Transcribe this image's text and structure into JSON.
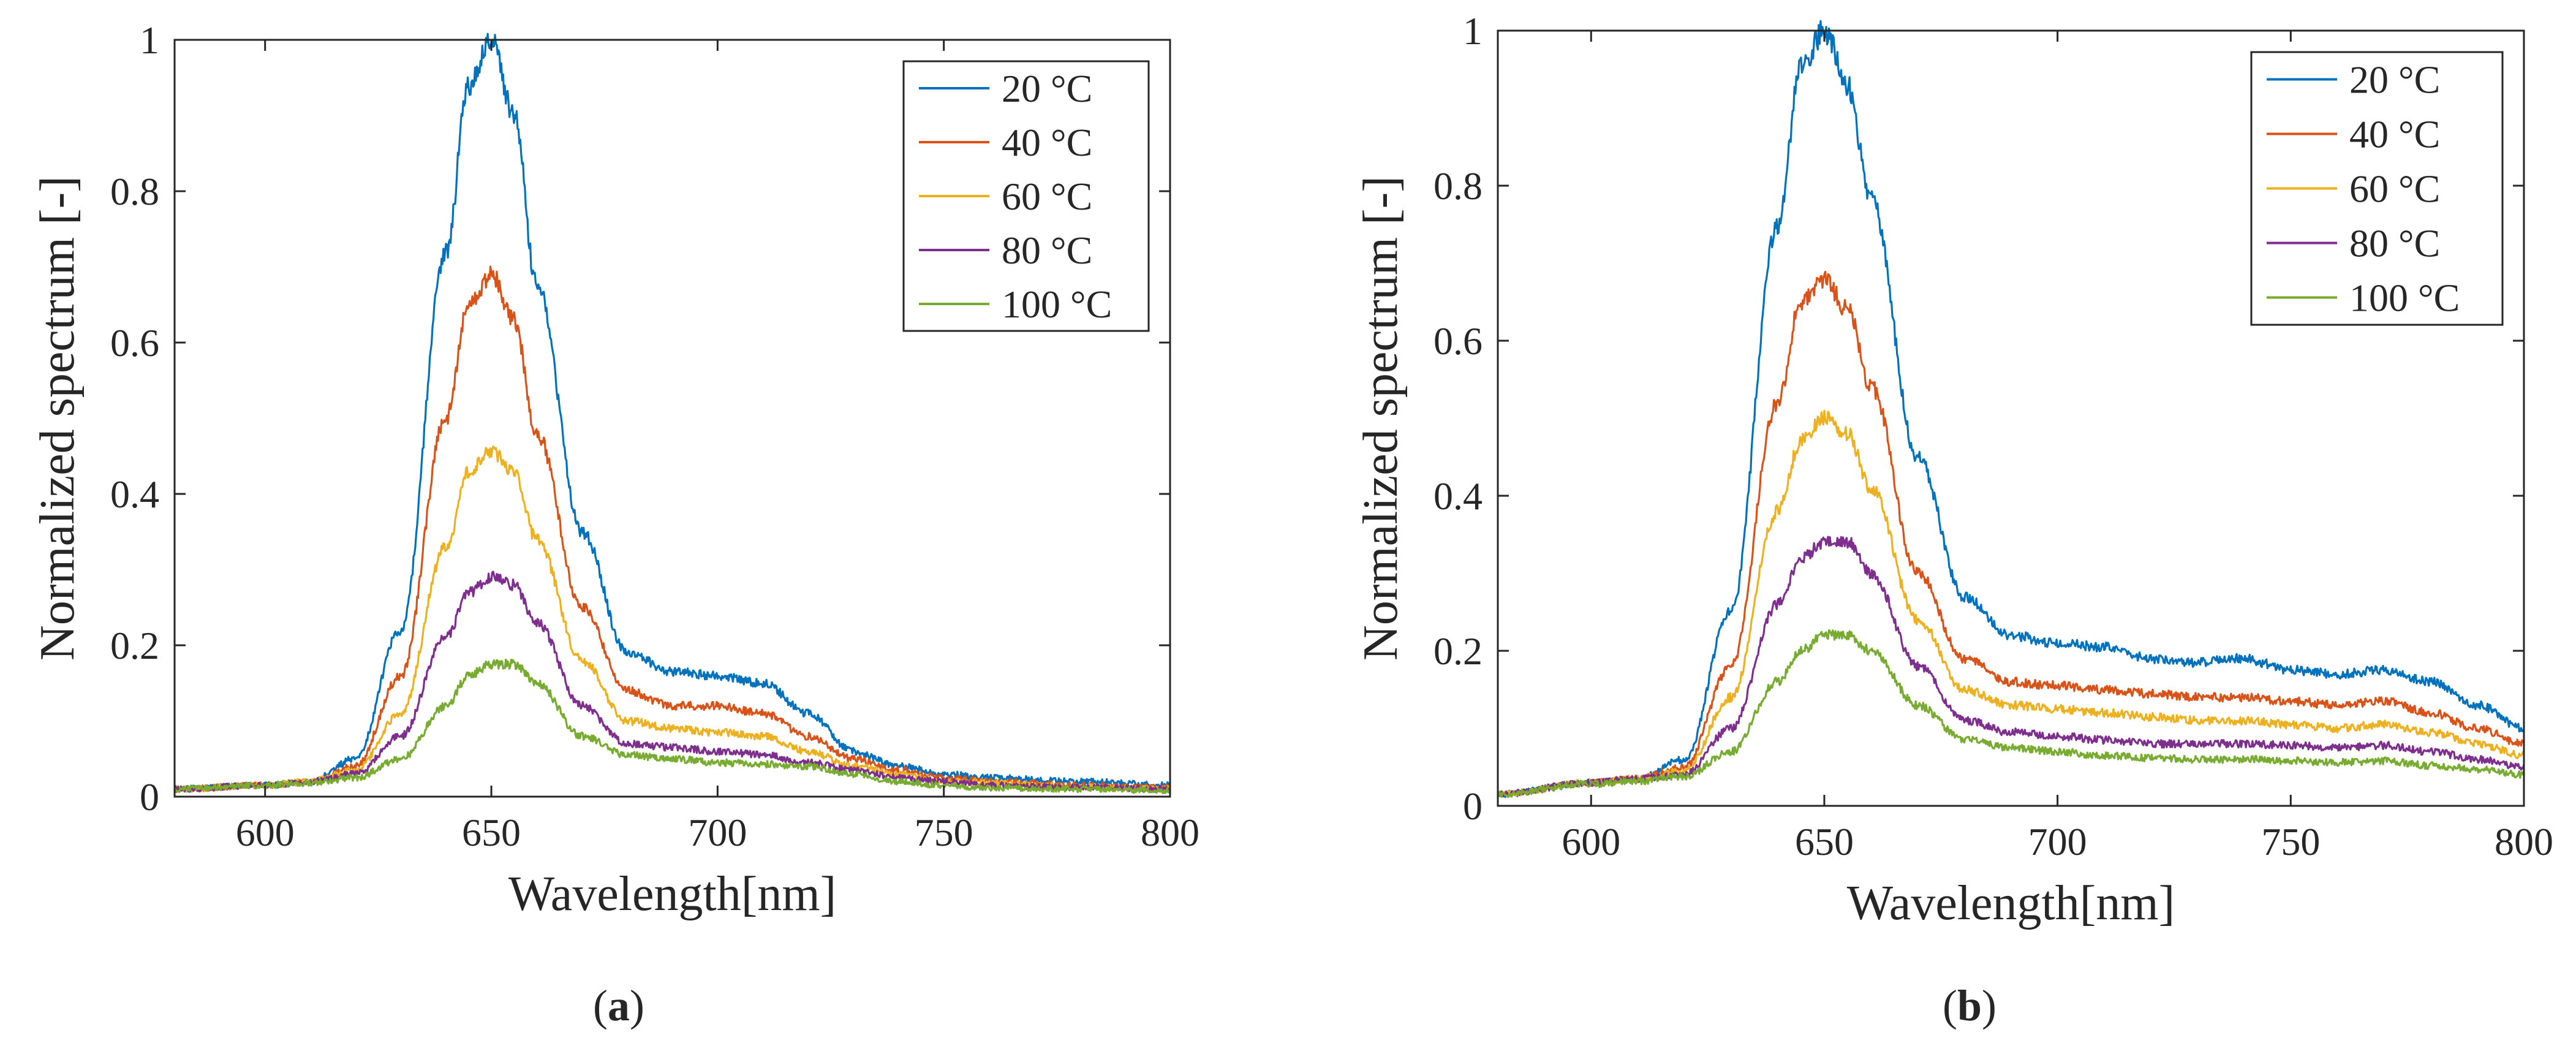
{
  "chart_data": [
    {
      "type": "line",
      "panel_label": "a",
      "xlabel": "Wavelength[nm]",
      "ylabel": "Normalized spectrum [-]",
      "xlim": [
        580,
        800
      ],
      "ylim": [
        0,
        1
      ],
      "xticks": [
        600,
        650,
        700,
        750,
        800
      ],
      "yticks": [
        0,
        0.2,
        0.4,
        0.6,
        0.8,
        1
      ],
      "xtick_labels": [
        "600",
        "650",
        "700",
        "750",
        "800"
      ],
      "ytick_labels": [
        "0",
        "0.2",
        "0.4",
        "0.6",
        "0.8",
        "1"
      ],
      "legend_position": "top-right",
      "x": [
        580,
        600,
        610,
        620,
        630,
        640,
        645,
        650,
        655,
        660,
        670,
        680,
        690,
        700,
        710,
        720,
        730,
        740,
        750,
        760,
        780,
        800
      ],
      "series": [
        {
          "name": "20 °C",
          "color": "#0072BD",
          "values": [
            0.01,
            0.015,
            0.02,
            0.05,
            0.22,
            0.72,
            0.94,
            1.0,
            0.9,
            0.68,
            0.35,
            0.19,
            0.165,
            0.16,
            0.15,
            0.11,
            0.06,
            0.04,
            0.03,
            0.025,
            0.02,
            0.015
          ]
        },
        {
          "name": "40 °C",
          "color": "#D95319",
          "values": [
            0.01,
            0.015,
            0.02,
            0.04,
            0.16,
            0.5,
            0.65,
            0.69,
            0.63,
            0.48,
            0.25,
            0.14,
            0.12,
            0.12,
            0.11,
            0.08,
            0.05,
            0.035,
            0.025,
            0.02,
            0.015,
            0.012
          ]
        },
        {
          "name": "60 °C",
          "color": "#EDB120",
          "values": [
            0.01,
            0.015,
            0.02,
            0.035,
            0.11,
            0.33,
            0.43,
            0.455,
            0.43,
            0.34,
            0.18,
            0.1,
            0.09,
            0.085,
            0.08,
            0.06,
            0.04,
            0.03,
            0.02,
            0.018,
            0.013,
            0.01
          ]
        },
        {
          "name": "80 °C",
          "color": "#7E2F8E",
          "values": [
            0.01,
            0.015,
            0.02,
            0.03,
            0.08,
            0.21,
            0.27,
            0.29,
            0.28,
            0.23,
            0.12,
            0.07,
            0.065,
            0.06,
            0.055,
            0.045,
            0.035,
            0.025,
            0.02,
            0.015,
            0.012,
            0.01
          ]
        },
        {
          "name": "100 °C",
          "color": "#77AC30",
          "values": [
            0.01,
            0.015,
            0.018,
            0.025,
            0.05,
            0.12,
            0.16,
            0.175,
            0.175,
            0.15,
            0.08,
            0.055,
            0.05,
            0.045,
            0.043,
            0.04,
            0.03,
            0.02,
            0.015,
            0.012,
            0.01,
            0.008
          ]
        }
      ]
    },
    {
      "type": "line",
      "panel_label": "b",
      "xlabel": "Wavelength[nm]",
      "ylabel": "Normalized spectrum [-]",
      "xlim": [
        580,
        800
      ],
      "ylim": [
        0,
        1
      ],
      "xticks": [
        600,
        650,
        700,
        750,
        800
      ],
      "yticks": [
        0,
        0.2,
        0.4,
        0.6,
        0.8,
        1
      ],
      "xtick_labels": [
        "600",
        "650",
        "700",
        "750",
        "800"
      ],
      "ytick_labels": [
        "0",
        "0.2",
        "0.4",
        "0.6",
        "0.8",
        "1"
      ],
      "legend_position": "top-right",
      "x": [
        580,
        600,
        610,
        620,
        630,
        640,
        645,
        650,
        655,
        660,
        670,
        680,
        690,
        700,
        710,
        720,
        730,
        740,
        750,
        760,
        770,
        780,
        790,
        800
      ],
      "series": [
        {
          "name": "20 °C",
          "color": "#0072BD",
          "values": [
            0.015,
            0.03,
            0.035,
            0.06,
            0.25,
            0.75,
            0.95,
            1.0,
            0.93,
            0.78,
            0.45,
            0.27,
            0.22,
            0.21,
            0.205,
            0.19,
            0.185,
            0.19,
            0.175,
            0.17,
            0.175,
            0.16,
            0.13,
            0.1
          ]
        },
        {
          "name": "40 °C",
          "color": "#D95319",
          "values": [
            0.015,
            0.03,
            0.035,
            0.05,
            0.18,
            0.52,
            0.65,
            0.68,
            0.64,
            0.54,
            0.3,
            0.19,
            0.16,
            0.155,
            0.15,
            0.145,
            0.14,
            0.14,
            0.135,
            0.13,
            0.135,
            0.12,
            0.1,
            0.08
          ]
        },
        {
          "name": "60 °C",
          "color": "#EDB120",
          "values": [
            0.015,
            0.03,
            0.035,
            0.045,
            0.14,
            0.38,
            0.47,
            0.5,
            0.48,
            0.41,
            0.24,
            0.15,
            0.13,
            0.125,
            0.12,
            0.115,
            0.11,
            0.11,
            0.105,
            0.1,
            0.105,
            0.095,
            0.08,
            0.065
          ]
        },
        {
          "name": "80 °C",
          "color": "#7E2F8E",
          "values": [
            0.015,
            0.03,
            0.035,
            0.04,
            0.1,
            0.26,
            0.32,
            0.34,
            0.34,
            0.3,
            0.18,
            0.11,
            0.095,
            0.09,
            0.085,
            0.08,
            0.08,
            0.08,
            0.078,
            0.075,
            0.078,
            0.07,
            0.06,
            0.05
          ]
        },
        {
          "name": "100 °C",
          "color": "#77AC30",
          "values": [
            0.015,
            0.028,
            0.032,
            0.038,
            0.07,
            0.16,
            0.2,
            0.22,
            0.22,
            0.2,
            0.13,
            0.085,
            0.075,
            0.07,
            0.065,
            0.062,
            0.06,
            0.06,
            0.058,
            0.056,
            0.058,
            0.052,
            0.047,
            0.04
          ]
        }
      ]
    }
  ]
}
